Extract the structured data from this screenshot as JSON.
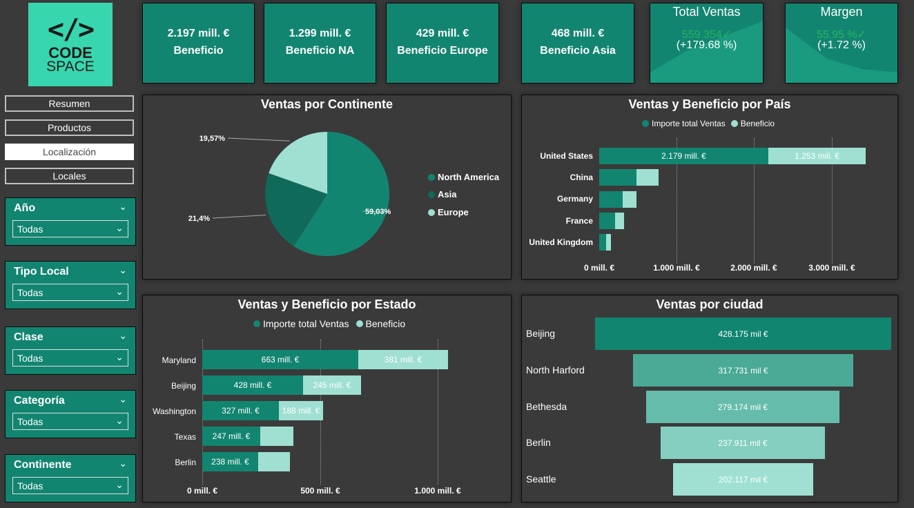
{
  "logo": {
    "mark": "</>",
    "line1": "CODE",
    "line2": "SPACE"
  },
  "kpis": [
    {
      "value": "2.197 mill. €",
      "label": "Beneficio"
    },
    {
      "value": "1.299 mill. €",
      "label": "Beneficio NA"
    },
    {
      "value": "429 mill. €",
      "label": "Beneficio Europe"
    },
    {
      "value": "468 mill. €",
      "label": "Beneficio Asia"
    }
  ],
  "total_ventas": {
    "title": "Total Ventas",
    "goal": "559.354✓",
    "pct": "(+179.68 %)"
  },
  "margen": {
    "title": "Margen",
    "goal": "55.95 %✓",
    "pct": "(+1.72 %)"
  },
  "nav": [
    "Resumen",
    "Productos",
    "Localización",
    "Locales"
  ],
  "nav_active": 2,
  "slicers": [
    {
      "title": "Año",
      "value": "Todas"
    },
    {
      "title": "Tipo Local",
      "value": "Todas"
    },
    {
      "title": "Clase",
      "value": "Todas"
    },
    {
      "title": "Categoría",
      "value": "Todas"
    },
    {
      "title": "Continente",
      "value": "Todas"
    }
  ],
  "icons": {
    "slicer_chevron": "chevron-down-icon",
    "dropdown_chevron": "chevron-down-icon"
  },
  "colors": {
    "teal": "#128570",
    "dark_teal": "#0f6a59",
    "light_teal": "#9fe0d2",
    "accent_green": "#38d6ae"
  },
  "pie": {
    "title": "Ventas por Continente",
    "legend": [
      {
        "name": "North America",
        "color": "#128570"
      },
      {
        "name": "Asia",
        "color": "#0f6a59"
      },
      {
        "name": "Europe",
        "color": "#9fe0d2"
      }
    ],
    "labels": [
      "59,03%",
      "21,4%",
      "19,57%"
    ]
  },
  "country": {
    "title": "Ventas y Beneficio por País",
    "legend": [
      "Importe total Ventas",
      "Beneficio"
    ],
    "rows": [
      "United States",
      "China",
      "Germany",
      "France",
      "United Kingdom"
    ],
    "us_sales_label": "2.179 mill. €",
    "us_profit_label": "1.253 mill. €",
    "xticks": [
      "0 mill. €",
      "1.000 mill. €",
      "2.000 mill. €",
      "3.000 mill. €"
    ]
  },
  "state": {
    "title": "Ventas y Beneficio por Estado",
    "legend": [
      "Importe total Ventas",
      "Beneficio"
    ],
    "rows": [
      "Maryland",
      "Beijing",
      "Washington",
      "Texas",
      "Berlin"
    ],
    "sales_labels": [
      "663 mill. €",
      "428 mill. €",
      "327 mill. €",
      "247 mill. €",
      "238 mill. €"
    ],
    "profit_labels": [
      "381 mill. €",
      "245 mill. €",
      "188 mill. €"
    ],
    "xticks": [
      "0 mill. €",
      "500 mill. €",
      "1.000 mill. €"
    ]
  },
  "city": {
    "title": "Ventas por ciudad",
    "rows": [
      "Beijing",
      "North Harford",
      "Bethesda",
      "Berlin",
      "Seattle"
    ],
    "labels": [
      "428.175 mil €",
      "317.731 mil €",
      "279.174 mil €",
      "237.911 mil €",
      "202.117 mil €"
    ]
  },
  "chart_data": [
    {
      "type": "pie",
      "title": "Ventas por Continente",
      "categories": [
        "North America",
        "Asia",
        "Europe"
      ],
      "values": [
        59.03,
        21.4,
        19.57
      ]
    },
    {
      "type": "bar",
      "title": "Ventas y Beneficio por País",
      "categories": [
        "United States",
        "China",
        "Germany",
        "France",
        "United Kingdom"
      ],
      "series": [
        {
          "name": "Importe total Ventas",
          "values": [
            2179,
            480,
            300,
            200,
            90
          ]
        },
        {
          "name": "Beneficio",
          "values": [
            1253,
            280,
            180,
            120,
            50
          ]
        }
      ],
      "xlim": [
        0,
        3300
      ]
    },
    {
      "type": "bar",
      "title": "Ventas y Beneficio por Estado",
      "categories": [
        "Maryland",
        "Beijing",
        "Washington",
        "Texas",
        "Berlin"
      ],
      "series": [
        {
          "name": "Importe total Ventas",
          "values": [
            663,
            428,
            327,
            247,
            238
          ]
        },
        {
          "name": "Beneficio",
          "values": [
            381,
            245,
            188,
            140,
            137
          ]
        }
      ],
      "xlim": [
        0,
        1000
      ]
    },
    {
      "type": "bar",
      "title": "Ventas por ciudad",
      "categories": [
        "Beijing",
        "North Harford",
        "Bethesda",
        "Berlin",
        "Seattle"
      ],
      "values": [
        428175,
        317731,
        279174,
        237911,
        202117
      ]
    }
  ]
}
